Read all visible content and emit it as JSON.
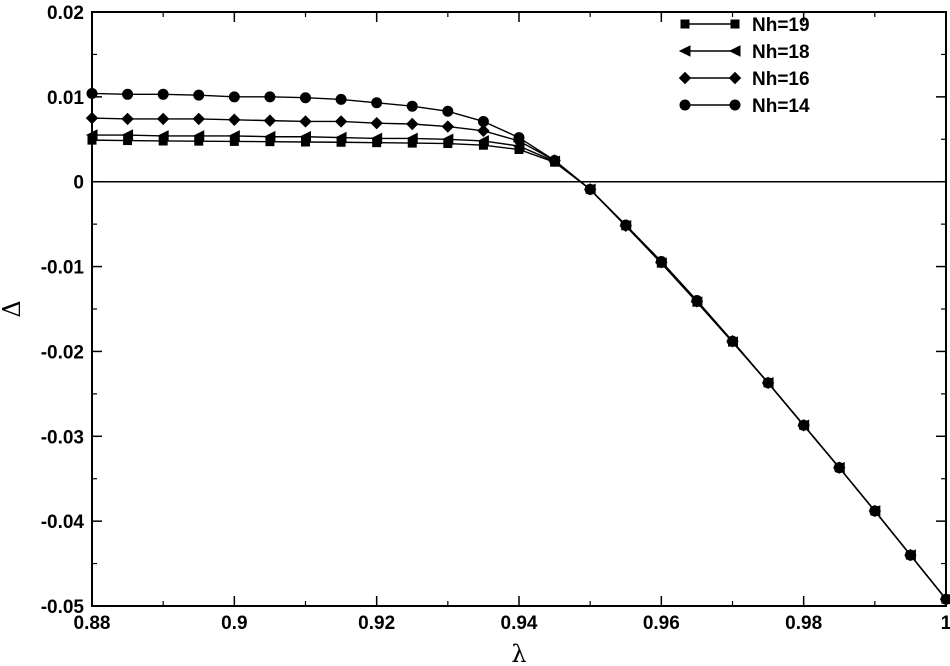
{
  "chart_data": {
    "type": "line",
    "xlabel": "λ",
    "ylabel": "Δ",
    "xlim": [
      0.88,
      1.0
    ],
    "ylim": [
      -0.05,
      0.02
    ],
    "xticks": [
      0.88,
      0.9,
      0.92,
      0.94,
      0.96,
      0.98,
      1.0
    ],
    "xtick_labels": [
      "0.88",
      "0.9",
      "0.92",
      "0.94",
      "0.96",
      "0.98",
      "1"
    ],
    "yticks": [
      -0.05,
      -0.04,
      -0.03,
      -0.02,
      -0.01,
      0,
      0.01,
      0.02
    ],
    "ytick_labels": [
      "-0.05",
      "-0.04",
      "-0.03",
      "-0.02",
      "-0.01",
      "0",
      "0.01",
      "0.02"
    ],
    "zero_line": true,
    "grid": false,
    "legend_position": "top-right",
    "colors": {
      "line": "#000000",
      "background": "#ffffff"
    },
    "x": [
      0.88,
      0.885,
      0.89,
      0.895,
      0.9,
      0.905,
      0.91,
      0.915,
      0.92,
      0.925,
      0.93,
      0.935,
      0.94,
      0.945,
      0.95,
      0.955,
      0.96,
      0.965,
      0.97,
      0.975,
      0.98,
      0.985,
      0.99,
      0.995,
      1.0
    ],
    "series": [
      {
        "name": "Nh=19",
        "marker": "square",
        "values": [
          0.0049,
          0.00485,
          0.0048,
          0.00478,
          0.00475,
          0.00472,
          0.00468,
          0.00465,
          0.0046,
          0.00455,
          0.0045,
          0.0043,
          0.0038,
          0.0023,
          -0.0009,
          -0.0052,
          -0.0096,
          -0.0142,
          -0.0189,
          -0.0237,
          -0.0287,
          -0.0337,
          -0.0388,
          -0.044,
          -0.0492
        ]
      },
      {
        "name": "Nh=18",
        "marker": "triangle-left",
        "values": [
          0.0055,
          0.0055,
          0.0054,
          0.0054,
          0.0054,
          0.0053,
          0.0053,
          0.0052,
          0.0051,
          0.0051,
          0.005,
          0.0048,
          0.0042,
          0.0024,
          -0.0009,
          -0.0052,
          -0.0096,
          -0.0142,
          -0.0189,
          -0.0237,
          -0.0287,
          -0.0337,
          -0.0388,
          -0.044,
          -0.0492
        ]
      },
      {
        "name": "Nh=16",
        "marker": "diamond",
        "values": [
          0.0075,
          0.0074,
          0.0074,
          0.0074,
          0.0073,
          0.0072,
          0.0071,
          0.0071,
          0.0069,
          0.0068,
          0.0065,
          0.006,
          0.0048,
          0.0025,
          -0.0009,
          -0.0052,
          -0.0095,
          -0.0141,
          -0.0188,
          -0.0237,
          -0.0287,
          -0.0337,
          -0.0388,
          -0.044,
          -0.0492
        ]
      },
      {
        "name": "Nh=14",
        "marker": "circle",
        "values": [
          0.0104,
          0.0103,
          0.0103,
          0.0102,
          0.01,
          0.01,
          0.0099,
          0.0097,
          0.0093,
          0.0089,
          0.0083,
          0.0071,
          0.0052,
          0.0025,
          -0.0009,
          -0.0051,
          -0.0094,
          -0.014,
          -0.0188,
          -0.0237,
          -0.0287,
          -0.0337,
          -0.0388,
          -0.044,
          -0.0492
        ]
      }
    ]
  }
}
